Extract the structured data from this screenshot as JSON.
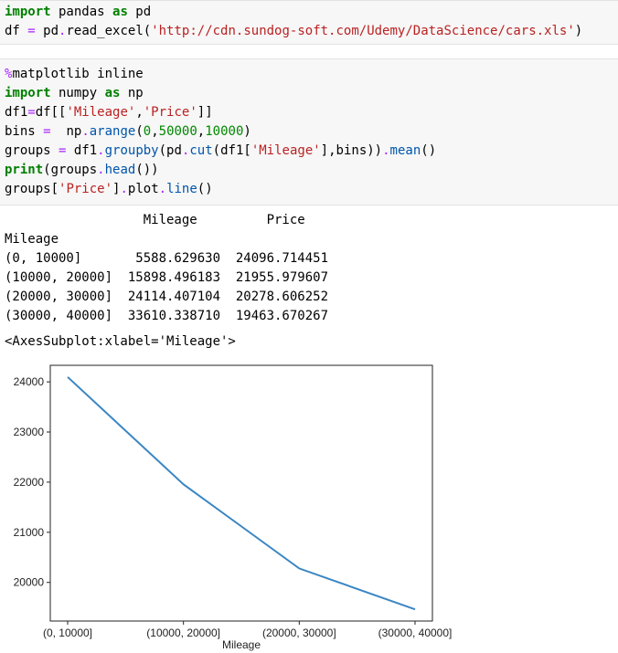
{
  "cell1": {
    "lines": [
      "import pandas as pd",
      "df = pd.read_excel('http://cdn.sundog-soft.com/Udemy/DataScience/cars.xls')"
    ]
  },
  "cell2": {
    "lines": [
      "%matplotlib inline",
      "import numpy as np",
      "df1=df[['Mileage','Price']]",
      "bins =  np.arange(0,50000,10000)",
      "groups = df1.groupby(pd.cut(df1['Mileage'],bins)).mean()",
      "print(groups.head())",
      "groups['Price'].plot.line()"
    ]
  },
  "output": {
    "table_header": "                  Mileage         Price",
    "index_name": "Mileage",
    "rows": [
      "(0, 10000]       5588.629630  24096.714451",
      "(10000, 20000]  15898.496183  21955.979607",
      "(20000, 30000]  24114.407104  20278.606252",
      "(30000, 40000]  33610.338710  19463.670267"
    ],
    "repr": "<AxesSubplot:xlabel='Mileage'>"
  },
  "chart_data": {
    "type": "line",
    "categories": [
      "(0, 10000]",
      "(10000, 20000]",
      "(20000, 30000]",
      "(30000, 40000]"
    ],
    "series": [
      {
        "values": [
          24096.714451,
          21955.979607,
          20278.606252,
          19463.670267
        ],
        "color": "#3a86c3"
      }
    ],
    "yticks": [
      20000,
      21000,
      22000,
      23000,
      24000
    ],
    "ylim": [
      19230,
      24330
    ],
    "xlabel": "Mileage",
    "ylabel": "",
    "title": "",
    "grid": false
  }
}
